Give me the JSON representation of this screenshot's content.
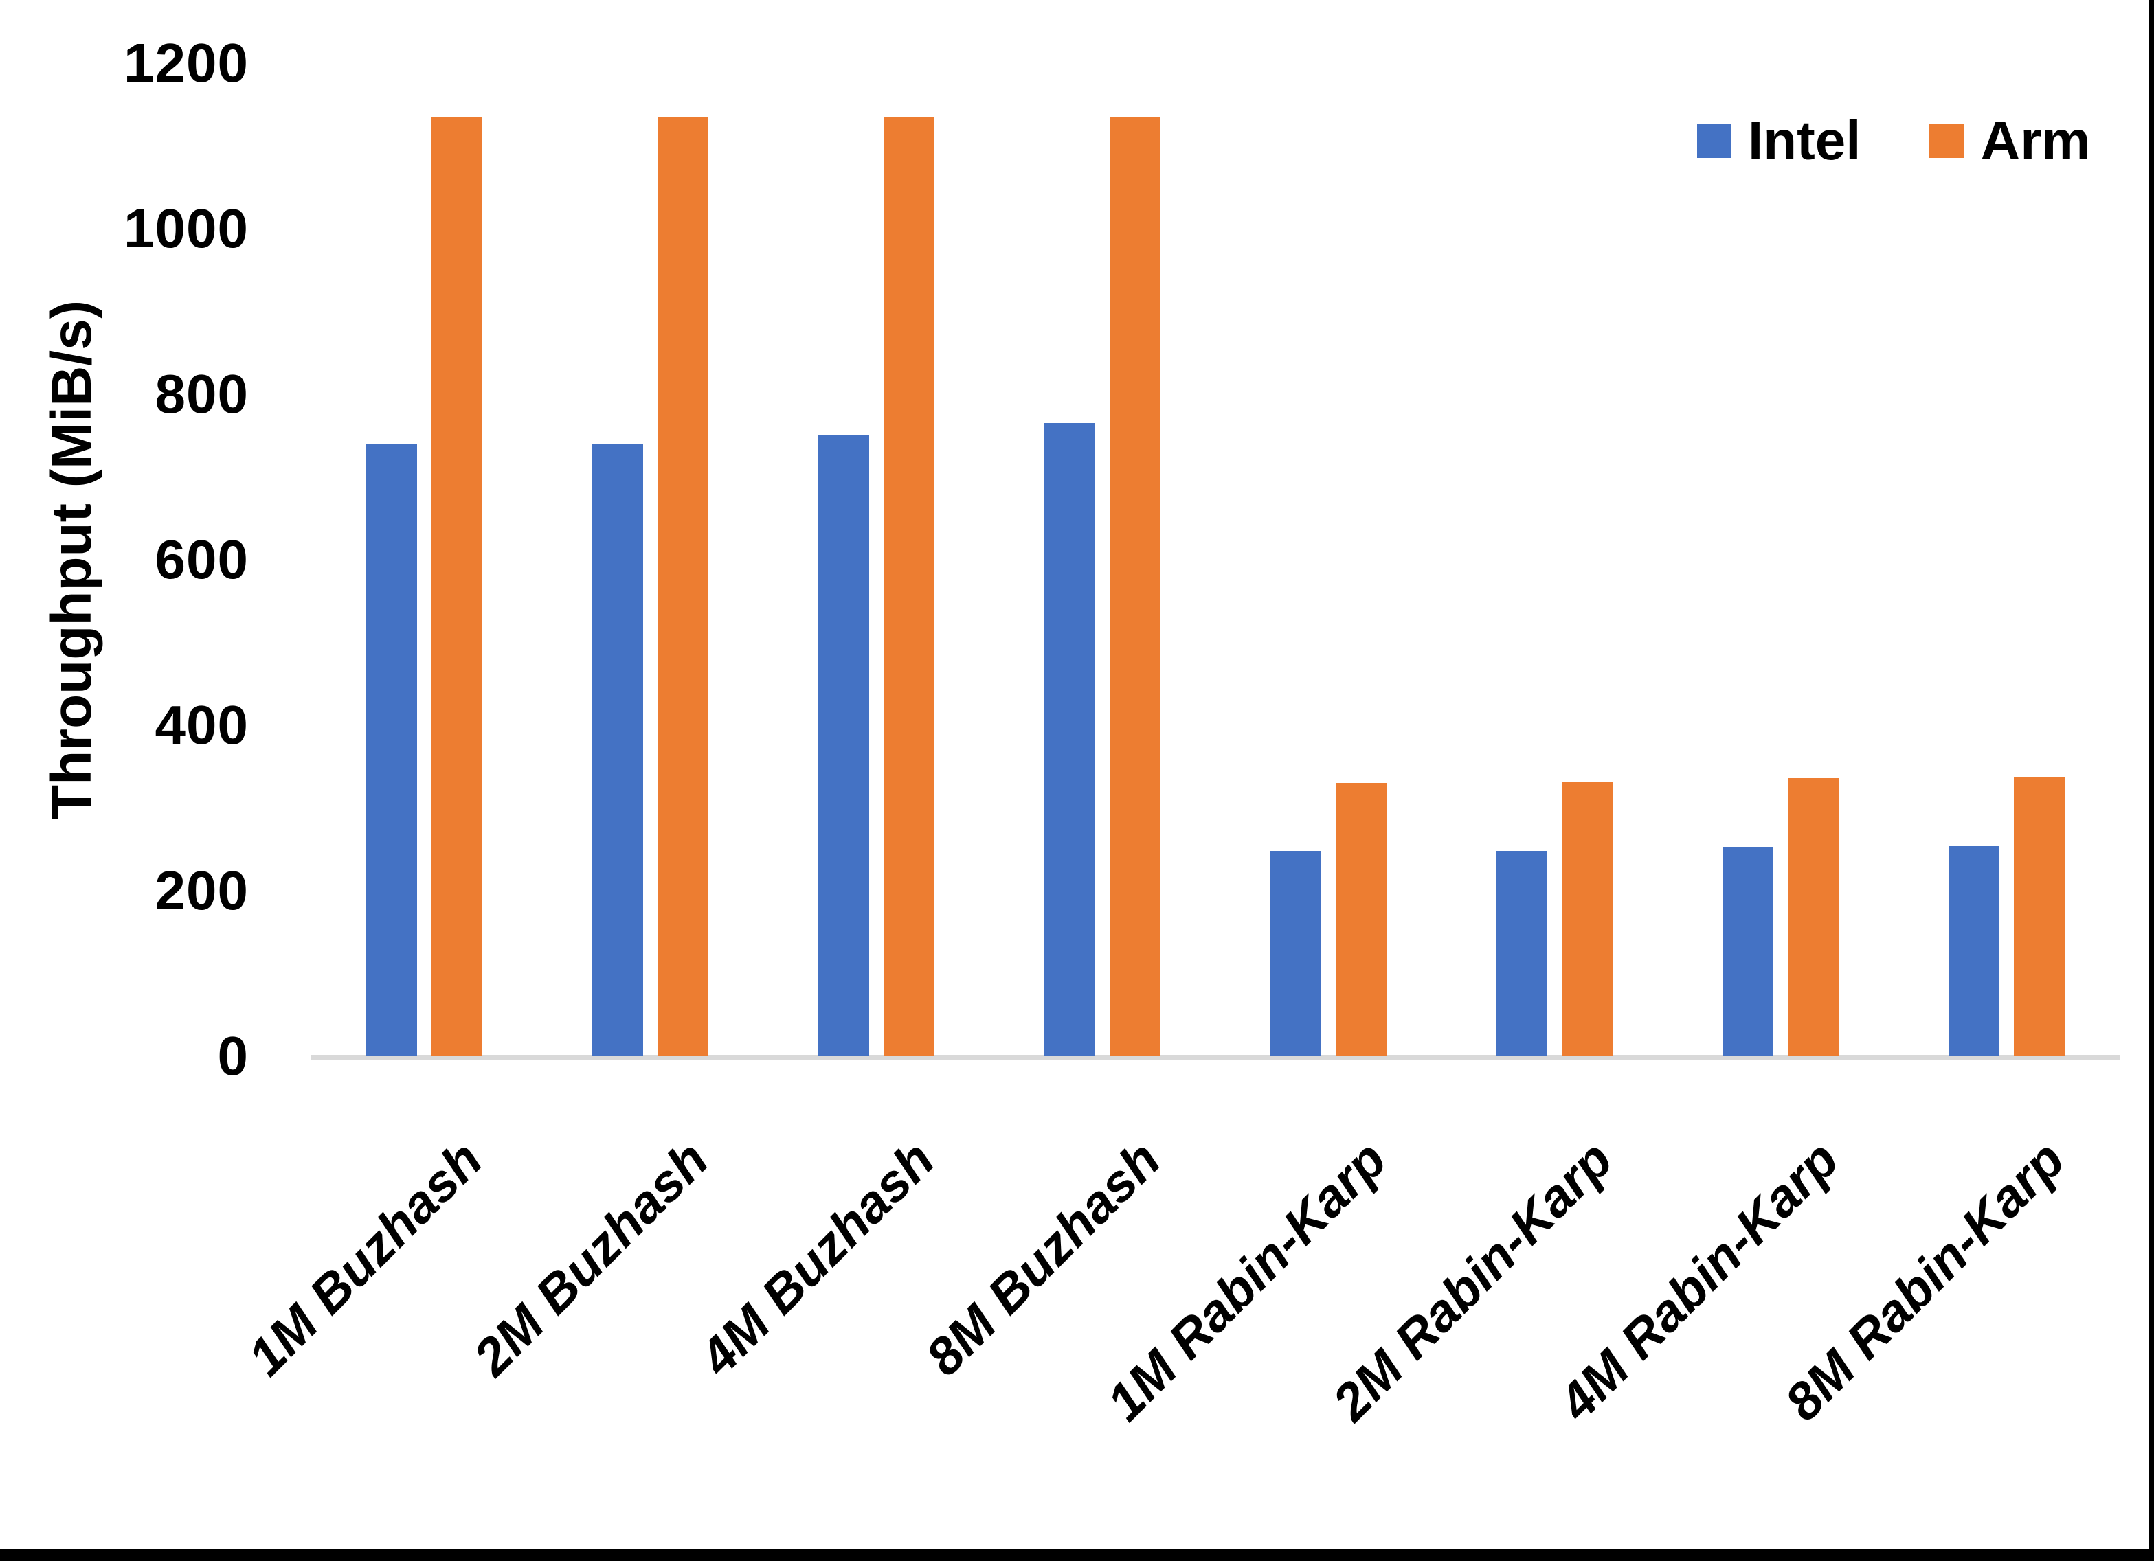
{
  "chart_data": {
    "type": "bar",
    "title": "",
    "xlabel": "",
    "ylabel": "Throughput (MiB/s)",
    "categories": [
      "1M Buzhash",
      "2M Buzhash",
      "4M Buzhash",
      "8M Buzhash",
      "1M Rabin-Karp",
      "2M Rabin-Karp",
      "4M Rabin-Karp",
      "8M Rabin-Karp"
    ],
    "series": [
      {
        "name": "Intel",
        "color": "#4472C4",
        "values": [
          740,
          740,
          750,
          765,
          248,
          248,
          252,
          254
        ]
      },
      {
        "name": "Arm",
        "color": "#ED7D31",
        "values": [
          1135,
          1135,
          1135,
          1135,
          330,
          332,
          336,
          338
        ]
      }
    ],
    "ylim": [
      0,
      1200
    ],
    "yticks": [
      0,
      200,
      400,
      600,
      800,
      1000,
      1200
    ],
    "grid": false,
    "legend_position": "top-right"
  },
  "colors": {
    "background": "#FFFFFF",
    "axis_line": "#D9D9D9",
    "text": "#000000",
    "frame": "#000000"
  }
}
